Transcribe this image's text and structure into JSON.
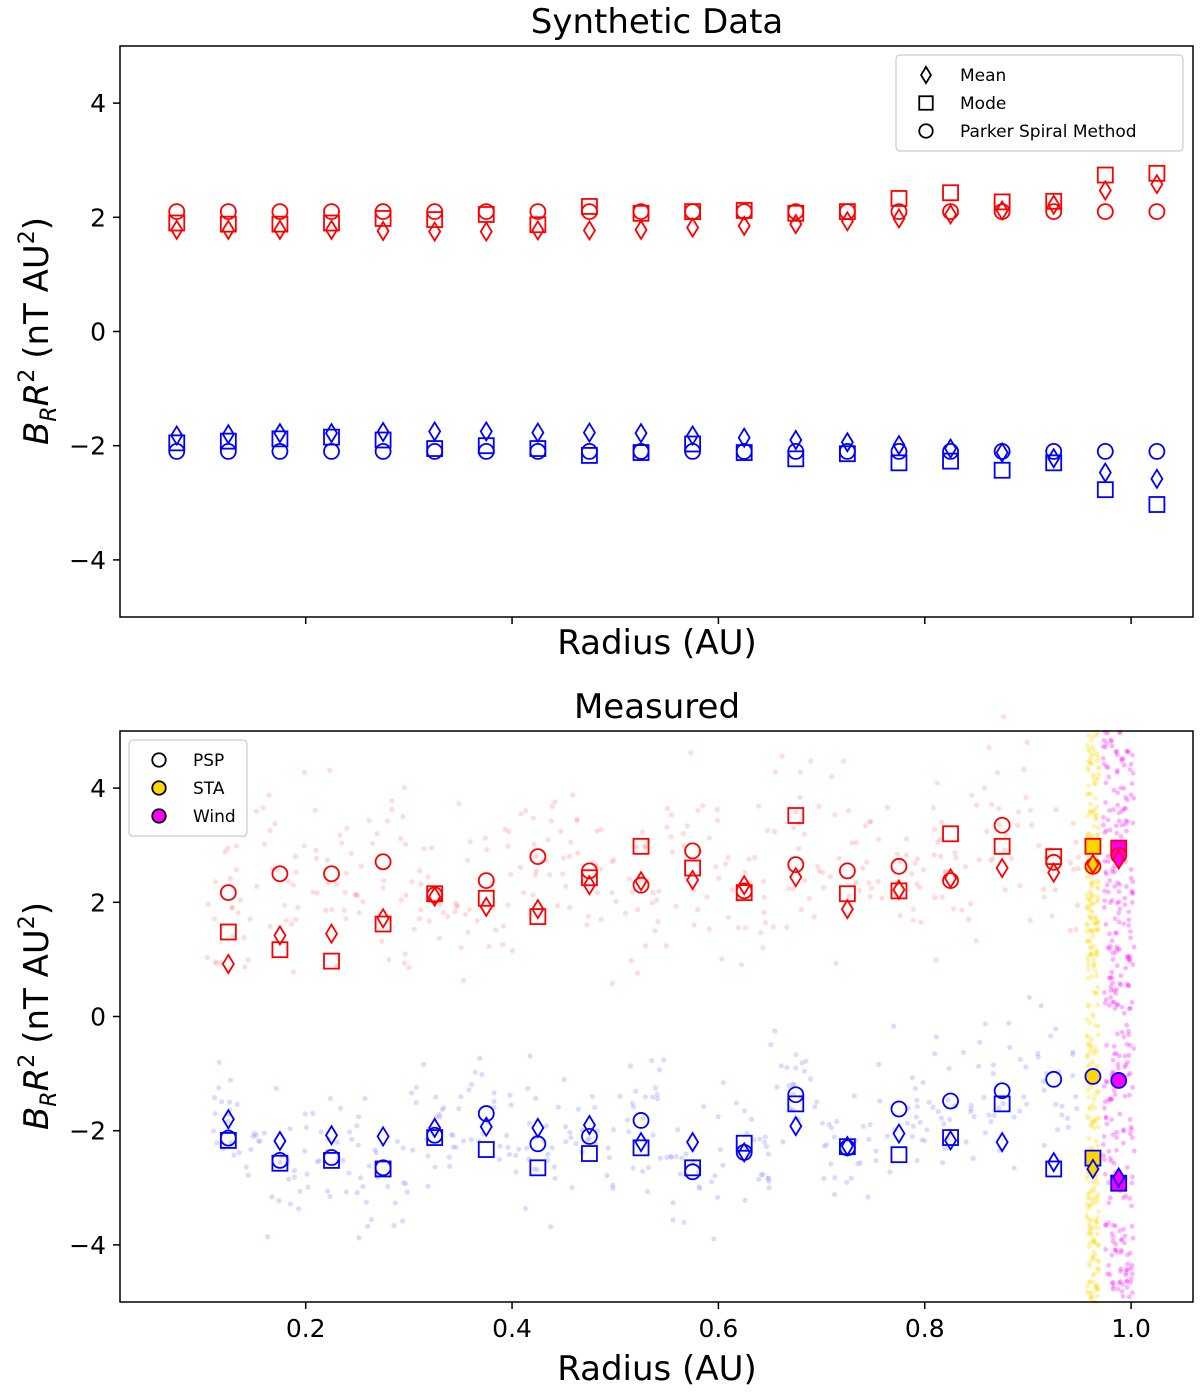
{
  "chart_data": [
    {
      "type": "scatter",
      "title": "Synthetic Data",
      "xlabel": "Radius (AU)",
      "ylabel_main": "B",
      "ylabel_sub": "R",
      "ylabel_var": "R",
      "ylabel_sup": "2",
      "ylabel_units_prefix": "(nT AU",
      "ylabel_units_sup": "2",
      "ylabel_units_suffix": ")",
      "xlim": [
        0.02,
        1.06
      ],
      "ylim": [
        -5,
        5
      ],
      "yticks": [
        -4,
        -2,
        0,
        2,
        4
      ],
      "ytick_labels": [
        "−4",
        "−2",
        "0",
        "2",
        "4"
      ],
      "xticks": [
        0.2,
        0.4,
        0.6,
        0.8,
        1.0
      ],
      "show_xtick_labels": false,
      "legend": {
        "position": "top-right",
        "entries": [
          {
            "label": "Mean",
            "marker": "diamond"
          },
          {
            "label": "Mode",
            "marker": "square"
          },
          {
            "label": "Parker Spiral Method",
            "marker": "circle"
          }
        ]
      },
      "colors": {
        "positive": "#ff0000",
        "negative": "#0000ff"
      },
      "x": [
        0.075,
        0.125,
        0.175,
        0.225,
        0.275,
        0.325,
        0.375,
        0.425,
        0.475,
        0.525,
        0.575,
        0.625,
        0.675,
        0.725,
        0.775,
        0.825,
        0.875,
        0.925,
        0.975,
        1.025
      ],
      "series": [
        {
          "name": "Mean (positive)",
          "marker": "diamond",
          "color": "#ff0000",
          "values": [
            1.78,
            1.78,
            1.78,
            1.78,
            1.76,
            1.75,
            1.75,
            1.77,
            1.77,
            1.78,
            1.82,
            1.85,
            1.88,
            1.93,
            1.98,
            2.05,
            2.12,
            2.22,
            2.47,
            2.58
          ]
        },
        {
          "name": "Mode (positive)",
          "marker": "square",
          "color": "#ff0000",
          "values": [
            1.9,
            1.88,
            1.88,
            1.9,
            1.98,
            1.96,
            2.05,
            1.87,
            2.19,
            2.07,
            2.1,
            2.12,
            2.07,
            2.1,
            2.33,
            2.43,
            2.27,
            2.28,
            2.74,
            2.77
          ]
        },
        {
          "name": "Parker Spiral Method (positive)",
          "marker": "circle",
          "color": "#ff0000",
          "values": [
            2.1,
            2.1,
            2.1,
            2.1,
            2.1,
            2.1,
            2.1,
            2.1,
            2.1,
            2.1,
            2.1,
            2.1,
            2.1,
            2.1,
            2.1,
            2.1,
            2.1,
            2.1,
            2.1,
            2.1
          ]
        },
        {
          "name": "Mean (negative)",
          "marker": "diamond",
          "color": "#0000ff",
          "values": [
            -1.82,
            -1.8,
            -1.78,
            -1.78,
            -1.76,
            -1.75,
            -1.75,
            -1.77,
            -1.77,
            -1.78,
            -1.82,
            -1.86,
            -1.9,
            -1.94,
            -1.99,
            -2.05,
            -2.12,
            -2.22,
            -2.47,
            -2.58
          ]
        },
        {
          "name": "Mode (negative)",
          "marker": "square",
          "color": "#0000ff",
          "values": [
            -1.95,
            -1.92,
            -1.88,
            -1.85,
            -1.9,
            -2.05,
            -2.0,
            -2.05,
            -2.17,
            -2.12,
            -1.97,
            -2.12,
            -2.23,
            -2.14,
            -2.3,
            -2.27,
            -2.43,
            -2.3,
            -2.77,
            -3.03
          ]
        },
        {
          "name": "Parker Spiral Method (negative)",
          "marker": "circle",
          "color": "#0000ff",
          "values": [
            -2.1,
            -2.1,
            -2.1,
            -2.1,
            -2.1,
            -2.1,
            -2.1,
            -2.1,
            -2.1,
            -2.1,
            -2.1,
            -2.1,
            -2.1,
            -2.1,
            -2.1,
            -2.1,
            -2.1,
            -2.1,
            -2.1,
            -2.1
          ]
        }
      ]
    },
    {
      "type": "scatter",
      "title": "Measured",
      "xlabel": "Radius (AU)",
      "ylabel_main": "B",
      "ylabel_sub": "R",
      "ylabel_var": "R",
      "ylabel_sup": "2",
      "ylabel_units_prefix": "(nT AU",
      "ylabel_units_sup": "2",
      "ylabel_units_suffix": ")",
      "xlim": [
        0.02,
        1.06
      ],
      "ylim": [
        -5,
        5
      ],
      "yticks": [
        -4,
        -2,
        0,
        2,
        4
      ],
      "ytick_labels": [
        "−4",
        "−2",
        "0",
        "2",
        "4"
      ],
      "xticks": [
        0.2,
        0.4,
        0.6,
        0.8,
        1.0
      ],
      "xtick_labels": [
        "0.2",
        "0.4",
        "0.6",
        "0.8",
        "1.0"
      ],
      "show_xtick_labels": true,
      "legend": {
        "position": "top-left",
        "entries": [
          {
            "label": "PSP",
            "marker": "circle",
            "fill": "none"
          },
          {
            "label": "STA",
            "marker": "circle",
            "fill": "#ffd700"
          },
          {
            "label": "Wind",
            "marker": "circle",
            "fill": "#ff00ff"
          }
        ]
      },
      "colors": {
        "positive": "#ff0000",
        "negative": "#0000ff",
        "sta": "#ffd700",
        "wind": "#ff00ff",
        "raw_positive": "#ff9999",
        "raw_negative": "#9999ff"
      },
      "x": [
        0.125,
        0.175,
        0.225,
        0.275,
        0.325,
        0.375,
        0.425,
        0.475,
        0.525,
        0.575,
        0.625,
        0.675,
        0.725,
        0.775,
        0.825,
        0.875,
        0.925
      ],
      "series": [
        {
          "name": "PSP Mean (positive)",
          "marker": "diamond",
          "color": "#ff0000",
          "values": [
            0.92,
            1.42,
            1.45,
            1.72,
            2.1,
            1.92,
            1.88,
            2.3,
            2.37,
            2.39,
            2.3,
            2.44,
            1.88,
            2.22,
            2.42,
            2.6,
            2.52
          ]
        },
        {
          "name": "PSP Mode (positive)",
          "marker": "square",
          "color": "#ff0000",
          "values": [
            1.48,
            1.17,
            0.97,
            1.62,
            2.15,
            2.07,
            1.75,
            2.43,
            2.98,
            2.6,
            2.17,
            3.52,
            2.15,
            2.2,
            3.2,
            2.98,
            2.8
          ]
        },
        {
          "name": "PSP Parker Spiral Method (positive)",
          "marker": "circle",
          "color": "#ff0000",
          "values": [
            2.17,
            2.5,
            2.5,
            2.71,
            2.13,
            2.38,
            2.8,
            2.55,
            2.3,
            2.9,
            2.2,
            2.66,
            2.55,
            2.63,
            2.38,
            3.35,
            2.7
          ]
        },
        {
          "name": "PSP Mean (negative)",
          "marker": "diamond",
          "color": "#0000ff",
          "values": [
            -1.8,
            -2.18,
            -2.08,
            -2.1,
            -1.95,
            -1.93,
            -1.95,
            -1.9,
            -2.2,
            -2.2,
            -2.38,
            -1.92,
            -2.27,
            -2.05,
            -2.17,
            -2.2,
            -2.55
          ]
        },
        {
          "name": "PSP Mode (negative)",
          "marker": "square",
          "color": "#0000ff",
          "values": [
            -2.17,
            -2.57,
            -2.52,
            -2.67,
            -2.12,
            -2.33,
            -2.65,
            -2.4,
            -2.3,
            -2.65,
            -2.22,
            -1.53,
            -2.28,
            -2.42,
            -2.12,
            -1.53,
            -2.67
          ]
        },
        {
          "name": "PSP Parker Spiral Method (negative)",
          "marker": "circle",
          "color": "#0000ff",
          "values": [
            -2.13,
            -2.52,
            -2.47,
            -2.65,
            -2.08,
            -1.7,
            -2.23,
            -2.1,
            -1.82,
            -2.72,
            -2.38,
            -1.37,
            -2.3,
            -1.62,
            -1.48,
            -1.3,
            -1.1
          ]
        }
      ],
      "spacecraft": [
        {
          "name": "STA",
          "x": 0.963,
          "fill": "#ffd700",
          "mean_pos": 2.67,
          "mode_pos": 2.98,
          "psp_pos": 2.63,
          "mean_neg": -2.67,
          "mode_neg": -2.48,
          "psp_neg": -1.05
        },
        {
          "name": "Wind",
          "x": 0.988,
          "fill": "#ff00ff",
          "mean_pos": 2.75,
          "mode_pos": 2.95,
          "psp_pos": 2.82,
          "mean_neg": -2.82,
          "mode_neg": -2.92,
          "psp_neg": -1.12
        }
      ]
    }
  ]
}
